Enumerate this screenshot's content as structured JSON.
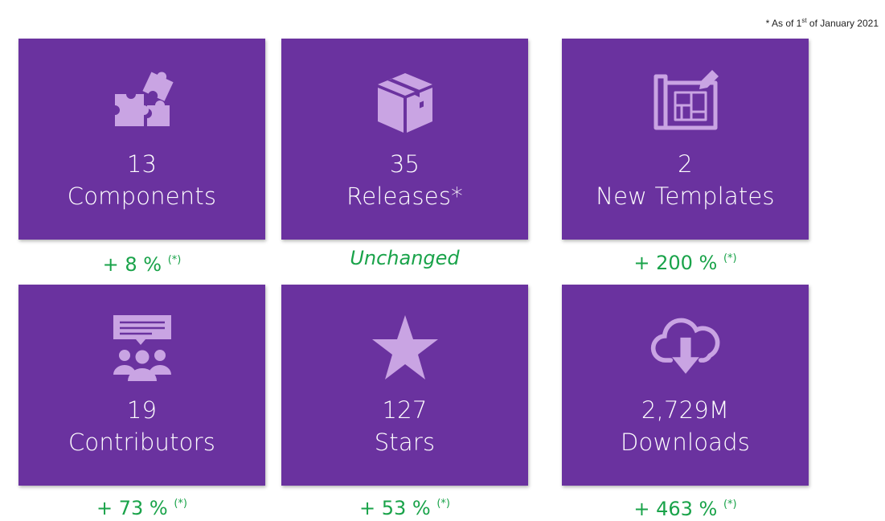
{
  "footnote": {
    "prefix": "* As of 1",
    "sup": "st",
    "suffix": " of January 2021"
  },
  "colors": {
    "tile_bg": "#6a329f",
    "icon": "#c9a4e3",
    "delta_green": "#1aa34a"
  },
  "tiles": [
    {
      "icon": "puzzle-icon",
      "value": "13",
      "label": "Components",
      "delta": "+ 8 %",
      "delta_note": "(*)"
    },
    {
      "icon": "package-icon",
      "value": "35",
      "label": "Releases*",
      "delta": "Unchanged",
      "delta_note": ""
    },
    {
      "icon": "blueprint-icon",
      "value": "2",
      "label": "New Templates",
      "delta": "+ 200 %",
      "delta_note": "(*)"
    },
    {
      "icon": "contributors-icon",
      "value": "19",
      "label": "Contributors",
      "delta": "+ 73 %",
      "delta_note": "(*)"
    },
    {
      "icon": "star-icon",
      "value": "127",
      "label": "Stars",
      "delta": "+ 53 %",
      "delta_note": "(*)"
    },
    {
      "icon": "cloud-download-icon",
      "value": "2,729M",
      "label": "Downloads",
      "delta": "+ 463 %",
      "delta_note": "(*)"
    }
  ]
}
